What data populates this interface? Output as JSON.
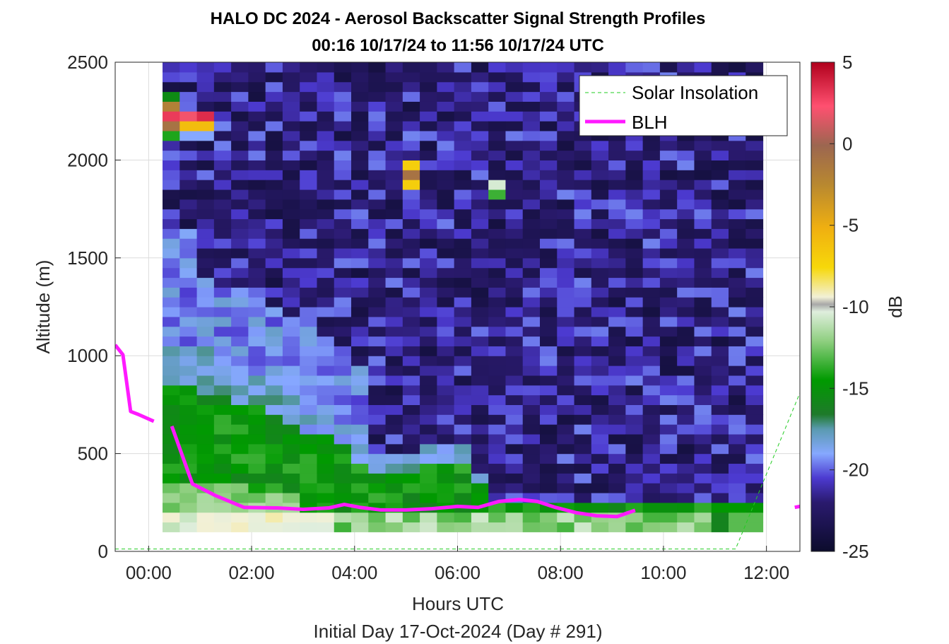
{
  "chart_data": {
    "type": "heatmap",
    "title": "HALO DC 2024 - Aerosol Backscatter Signal Strength Profiles",
    "subtitle": "00:16 10/17/24 to 11:56 10/17/24  UTC",
    "xlabel": "Hours UTC",
    "footer": "Initial Day 17-Oct-2024 (Day # 291)",
    "ylabel": "Altitude (m)",
    "colorbar_label": "dB",
    "xlim": [
      -0.65,
      12.65
    ],
    "ylim": [
      0,
      2500
    ],
    "x_ticks": [
      {
        "value": 0,
        "label": "00:00"
      },
      {
        "value": 2,
        "label": "02:00"
      },
      {
        "value": 4,
        "label": "04:00"
      },
      {
        "value": 6,
        "label": "06:00"
      },
      {
        "value": 8,
        "label": "08:00"
      },
      {
        "value": 10,
        "label": "10:00"
      },
      {
        "value": 12,
        "label": "12:00"
      }
    ],
    "y_ticks": [
      {
        "value": 0,
        "label": "0"
      },
      {
        "value": 500,
        "label": "500"
      },
      {
        "value": 1000,
        "label": "1000"
      },
      {
        "value": 1500,
        "label": "1500"
      },
      {
        "value": 2000,
        "label": "2000"
      },
      {
        "value": 2500,
        "label": "2500"
      }
    ],
    "colorbar_range": [
      -25,
      5
    ],
    "colorbar_ticks": [
      {
        "value": 5,
        "label": "5"
      },
      {
        "value": 0,
        "label": "0"
      },
      {
        "value": -5,
        "label": "-5"
      },
      {
        "value": -10,
        "label": "-10"
      },
      {
        "value": -15,
        "label": "-15"
      },
      {
        "value": -20,
        "label": "-20"
      },
      {
        "value": -25,
        "label": "-25"
      }
    ],
    "grid": true,
    "legend_position": "top-right",
    "legend": [
      {
        "name": "Solar Insolation",
        "color": "#22cc22",
        "style": "dashed"
      },
      {
        "name": "BLH",
        "color": "#ff19ff",
        "style": "solid"
      }
    ],
    "heatmap": {
      "time_start": 0.27,
      "time_end": 11.93,
      "time_bins": 35,
      "alt_start": 100,
      "alt_end": 2500,
      "alt_bins": 48
    },
    "blh_series": [
      {
        "x": [
          -0.65,
          -0.5,
          -0.35,
          -0.2,
          0.1
        ],
        "y": [
          1055,
          1005,
          715,
          700,
          665
        ]
      },
      {
        "x": [
          0.45,
          0.85,
          1.3,
          1.85,
          2.5,
          3.0,
          3.5,
          3.8,
          4.1,
          4.5,
          5.0,
          5.5,
          6.0,
          6.4,
          6.8,
          7.2,
          7.55,
          7.9,
          8.3,
          8.7,
          9.1,
          9.45
        ],
        "y": [
          640,
          345,
          285,
          225,
          222,
          215,
          222,
          240,
          225,
          212,
          212,
          218,
          230,
          225,
          255,
          265,
          255,
          225,
          198,
          182,
          178,
          210
        ]
      },
      {
        "x": [
          12.55,
          12.65
        ],
        "y": [
          225,
          230
        ]
      }
    ],
    "solar_insolation": {
      "x": [
        -0.65,
        11.4,
        12.65
      ],
      "y": [
        12,
        12,
        810
      ]
    }
  }
}
